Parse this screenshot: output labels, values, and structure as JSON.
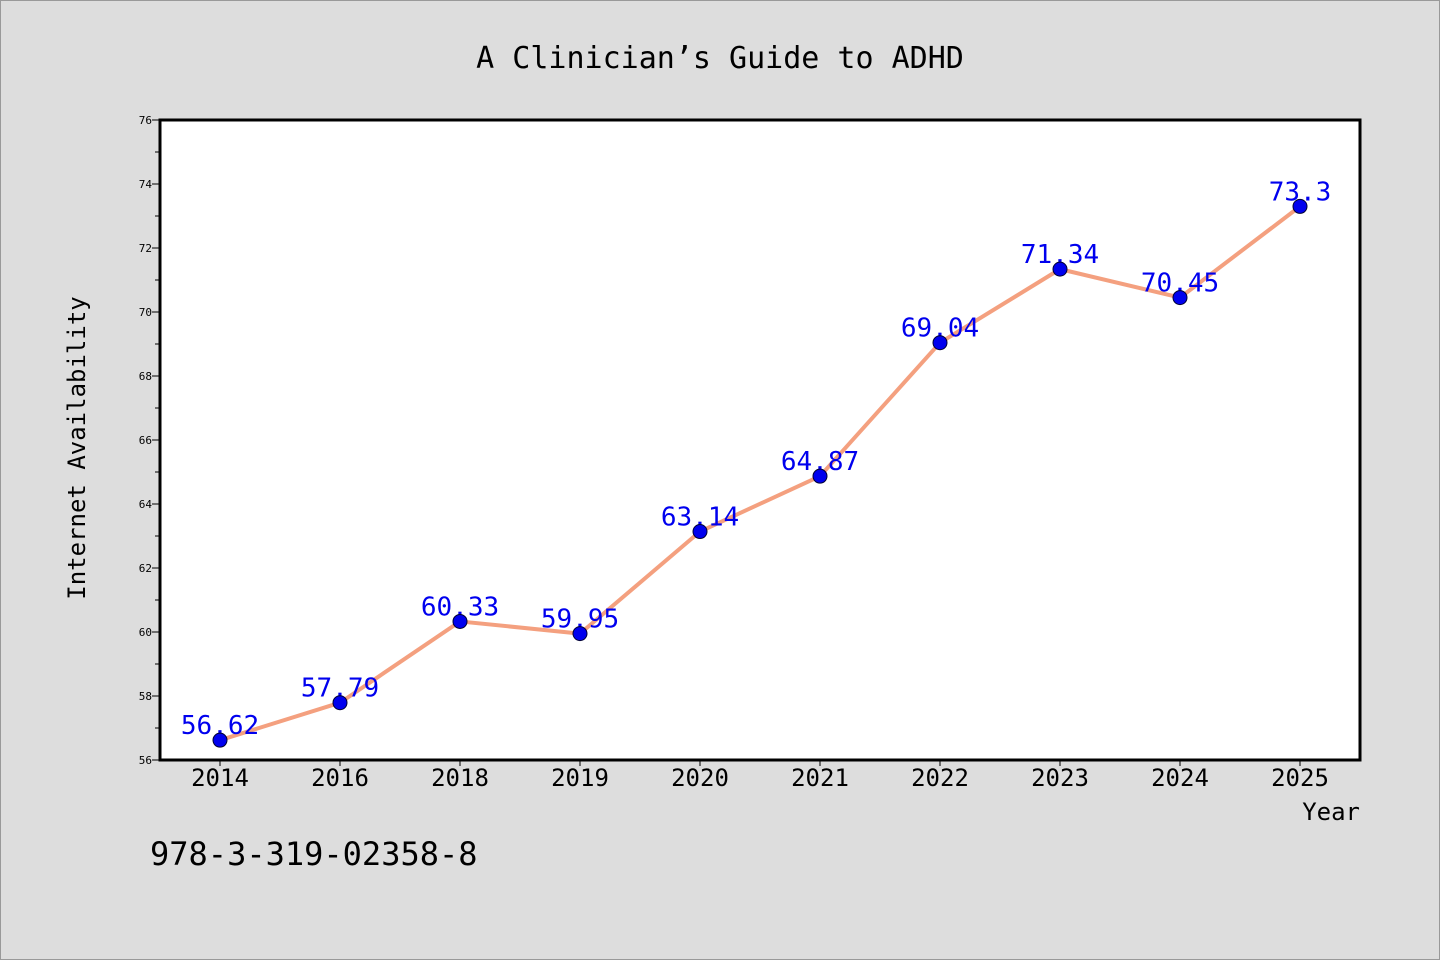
{
  "chart_data": {
    "type": "line",
    "title": "A Clinician’s Guide to ADHD",
    "xlabel": "Year",
    "ylabel": "Internet Availability",
    "categories": [
      "2014",
      "2016",
      "2018",
      "2019",
      "2020",
      "2021",
      "2022",
      "2023",
      "2024",
      "2025"
    ],
    "series": [
      {
        "values": [
          56.62,
          57.79,
          60.33,
          59.95,
          63.14,
          64.87,
          69.04,
          71.34,
          70.45,
          73.3
        ],
        "data_labels": [
          "56.62",
          "57.79",
          "60.33",
          "59.95",
          "63.14",
          "64.87",
          "69.04",
          "71.34",
          "70.45",
          "73.3"
        ],
        "line_color": "#f4a07f",
        "marker_color": "#0000ee",
        "label_color": "#0000ee"
      }
    ],
    "ylim": [
      56,
      76
    ],
    "y_ticks": [
      "56",
      "58",
      "60",
      "62",
      "64",
      "66",
      "68",
      "70",
      "72",
      "74",
      "76"
    ],
    "grid": false,
    "legend": "none"
  },
  "footer": {
    "isbn": "978-3-319-02358-8"
  },
  "colors": {
    "background": "#dddddd",
    "plot_background": "#ffffff",
    "axis": "#000000"
  }
}
